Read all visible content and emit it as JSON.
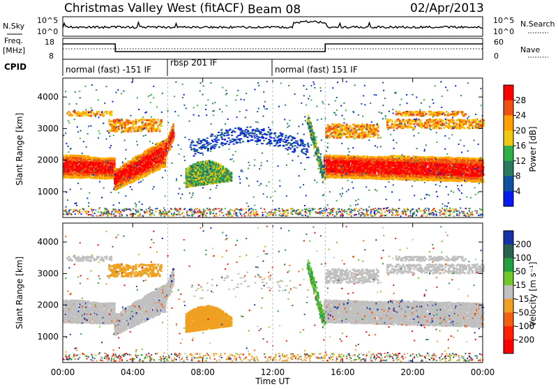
{
  "header": {
    "station": "Christmas Valley West (fitACF)",
    "beam": "Beam 08",
    "date": "02/Apr/2013"
  },
  "noise_panel": {
    "left_label": "N.Sky",
    "right_label": "N.Search",
    "left_ticks": [
      "10^5",
      "10^0"
    ],
    "right_ticks": [
      "10^5",
      "10^0"
    ]
  },
  "freq_panel": {
    "left_label_line1": "Freq.",
    "left_label_line2": "[MHz]",
    "left_ticks": [
      "18",
      "8"
    ],
    "right_label": "Nave",
    "right_ticks": [
      "60",
      "0"
    ]
  },
  "cpid": {
    "label": "CPID",
    "segments": [
      {
        "start_hour": 0,
        "end_hour": 6,
        "text": "normal (fast) -151 IF"
      },
      {
        "start_hour": 6,
        "end_hour": 12,
        "text": "rbsp 201 IF"
      },
      {
        "start_hour": 12,
        "end_hour": 24,
        "text": "normal (fast) 151 IF"
      }
    ]
  },
  "chart_data": [
    {
      "type": "heatmap",
      "title": "Power",
      "xlabel": "",
      "ylabel": "Slant Range [km]",
      "xlim": [
        0,
        24
      ],
      "ylim": [
        180,
        4600
      ],
      "yticks": [
        1000,
        2000,
        3000,
        4000
      ],
      "colorbar": {
        "label": "Power [dB]",
        "ticks": [
          "28",
          "24",
          "20",
          "16",
          "12",
          "8",
          "4"
        ],
        "colors": [
          "#ff0000",
          "#f05010",
          "#ffa000",
          "#f0c810",
          "#30b048",
          "#2a7a60",
          "#1050a0",
          "#0818f0"
        ]
      }
    },
    {
      "type": "heatmap",
      "title": "Velocity",
      "xlabel": "Time UT",
      "ylabel": "Slant Range [km]",
      "xlim": [
        0,
        24
      ],
      "ylim": [
        180,
        4600
      ],
      "yticks": [
        1000,
        2000,
        3000,
        4000
      ],
      "xtick_labels": [
        "00:00",
        "04:00",
        "08:00",
        "12:00",
        "16:00",
        "20:00",
        "00:00"
      ],
      "colorbar": {
        "label": "Velocity [m s⁻¹]",
        "ticks": [
          "200",
          "100",
          "50",
          "15",
          "-15",
          "-50",
          "-100",
          "-200"
        ],
        "colors": [
          "#1830a8",
          "#2a6050",
          "#20a040",
          "#70c828",
          "#c0c0c0",
          "#f0a020",
          "#f06010",
          "#ff2000",
          "#ff0000"
        ]
      }
    }
  ],
  "colors": {
    "grey_scatter": "#c0c0c0",
    "orange_scatter": "#f0a020",
    "green_scatter": "#50c030"
  }
}
